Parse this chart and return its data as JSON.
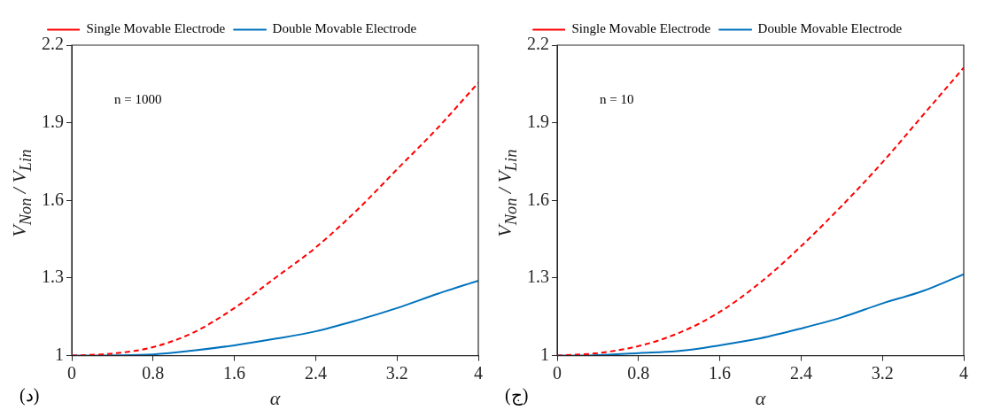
{
  "chart_data": [
    {
      "type": "line",
      "xlabel": "α",
      "ylabel": "V$_{Non}$ / V$_{Lin}$",
      "annotations": [
        "n = 1000",
        "(د)"
      ],
      "legend": "top left",
      "grid": false,
      "xlim": [
        0,
        4
      ],
      "ylim": [
        1,
        2.2
      ],
      "xticks": [
        0,
        0.8,
        1.6,
        2.4,
        3.2,
        4
      ],
      "yticks": [
        1,
        1.3,
        1.6,
        1.9,
        2.2
      ],
      "x": [
        0,
        0.4,
        0.8,
        1.2,
        1.6,
        2.0,
        2.4,
        2.8,
        3.2,
        3.6,
        4
      ],
      "series": [
        {
          "name": "Single Movable Electrode",
          "color": "#ff0000",
          "line_style": "dashed",
          "values": [
            1,
            1.008,
            1.033,
            1.09,
            1.184,
            1.3,
            1.418,
            1.56,
            1.72,
            1.88,
            2.055
          ]
        },
        {
          "name": "Double Movable Electrode",
          "color": "#0072bd",
          "line_style": "solid",
          "values": [
            1,
            1.001,
            1.005,
            1.02,
            1.04,
            1.065,
            1.094,
            1.136,
            1.184,
            1.239,
            1.29
          ]
        }
      ]
    },
    {
      "type": "line",
      "xlabel": "α",
      "ylabel": "V$_{Non}$ / V$_{Lin}$",
      "annotations": [
        "n = 10",
        "(ج)"
      ],
      "legend": "top left",
      "grid": false,
      "xlim": [
        0,
        4
      ],
      "ylim": [
        1,
        2.2
      ],
      "xticks": [
        0,
        0.8,
        1.6,
        2.4,
        3.2,
        4
      ],
      "yticks": [
        1,
        1.3,
        1.6,
        1.9,
        2.2
      ],
      "x": [
        0,
        0.4,
        0.8,
        1.2,
        1.6,
        2.0,
        2.4,
        2.8,
        3.2,
        3.6,
        4
      ],
      "series": [
        {
          "name": "Single Movable Electrode",
          "color": "#ff0000",
          "line_style": "dashed",
          "values": [
            1,
            1.01,
            1.037,
            1.088,
            1.169,
            1.283,
            1.423,
            1.579,
            1.747,
            1.93,
            2.113
          ]
        },
        {
          "name": "Double Movable Electrode",
          "color": "#0072bd",
          "line_style": "solid",
          "values": [
            1,
            1.002,
            1.01,
            1.018,
            1.04,
            1.067,
            1.105,
            1.148,
            1.202,
            1.25,
            1.315
          ]
        }
      ]
    }
  ]
}
